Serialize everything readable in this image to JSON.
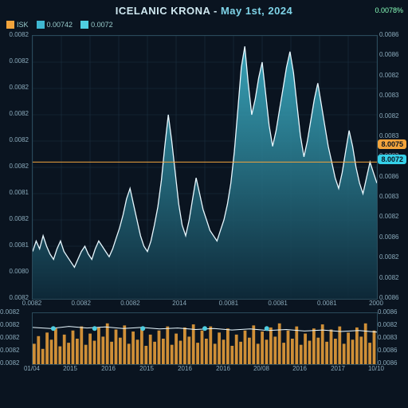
{
  "title_prefix": "ICELANIC KRONA",
  "title_sep": " - ",
  "title_date": "May 1st, 2024",
  "top_right": "0.0078%",
  "legend": [
    {
      "label": "ISK",
      "color": "#f2a43c"
    },
    {
      "label": "0.00742",
      "color": "#3fb7d1"
    },
    {
      "label": "0.0072",
      "color": "#4fcde0"
    }
  ],
  "chart": {
    "type": "area",
    "background": "#0a1420",
    "grid_color": "#1b3140",
    "line_color": "#e8f8ff",
    "line_width": 1.3,
    "area_top": "#3fbad1",
    "area_bottom": "#0e2a3a",
    "ref_line_color": "#f2a43c",
    "ref_line_y": 0.52,
    "xlim": [
      0,
      1
    ],
    "ylim": [
      0,
      1
    ],
    "y_ticks_left": [
      "0.0082",
      "0.0082",
      "0.0082",
      "0.0082",
      "0.0082",
      "0.0082",
      "0.0081",
      "0.0082",
      "0.0081",
      "0.0080",
      "0.0082"
    ],
    "y_ticks_right": [
      "0.0086",
      "0.0086",
      "0.0082",
      "0.0083",
      "0.0082",
      "0.0083",
      "0.0083",
      "0.0086",
      "0.0083",
      "0.0082",
      "0.0086",
      "0.0082",
      "0.0082",
      "0.0086"
    ],
    "x_ticks": [
      "0.0082",
      "0.0082",
      "0.0082",
      "2014",
      "0.0081",
      "0.0081",
      "0.0081",
      "2000"
    ],
    "badges": [
      {
        "text": "8.0072",
        "color": "#0a1420",
        "bg": "#35d0e8",
        "y": 0.52
      },
      {
        "text": "8.0075",
        "color": "#0a1420",
        "bg": "#f2a43c",
        "y": 0.58
      }
    ],
    "series": [
      0.18,
      0.22,
      0.19,
      0.24,
      0.2,
      0.17,
      0.15,
      0.19,
      0.22,
      0.18,
      0.16,
      0.14,
      0.12,
      0.15,
      0.18,
      0.2,
      0.17,
      0.15,
      0.19,
      0.22,
      0.2,
      0.18,
      0.16,
      0.19,
      0.23,
      0.27,
      0.32,
      0.38,
      0.42,
      0.36,
      0.3,
      0.24,
      0.2,
      0.18,
      0.22,
      0.28,
      0.35,
      0.45,
      0.58,
      0.7,
      0.6,
      0.48,
      0.36,
      0.28,
      0.24,
      0.3,
      0.38,
      0.46,
      0.4,
      0.34,
      0.3,
      0.26,
      0.24,
      0.22,
      0.26,
      0.3,
      0.36,
      0.44,
      0.56,
      0.72,
      0.88,
      0.96,
      0.82,
      0.7,
      0.76,
      0.84,
      0.9,
      0.78,
      0.66,
      0.58,
      0.64,
      0.72,
      0.8,
      0.88,
      0.94,
      0.86,
      0.74,
      0.62,
      0.54,
      0.6,
      0.68,
      0.76,
      0.82,
      0.74,
      0.66,
      0.58,
      0.52,
      0.46,
      0.42,
      0.48,
      0.56,
      0.64,
      0.58,
      0.5,
      0.44,
      0.4,
      0.46,
      0.52,
      0.48,
      0.44
    ]
  },
  "mini": {
    "type": "bar+line",
    "bar_color": "#f2a43c",
    "line_color": "#e8f8ff",
    "marker_color": "#4fcde0",
    "marker_r": 3,
    "y_left": [
      "0.0082",
      "0.0082",
      "0.0082",
      "0.0082",
      "0.0082"
    ],
    "y_right": [
      "0.0086",
      "0.0082",
      "0.0083",
      "0.0086",
      "0.0086"
    ],
    "x_ticks": [
      "01/04",
      "2015",
      "2016",
      "2015",
      "2016",
      "2016",
      "20/08",
      "2016",
      "2017",
      "10/10"
    ],
    "bars": [
      0.4,
      0.55,
      0.3,
      0.62,
      0.48,
      0.7,
      0.35,
      0.58,
      0.42,
      0.66,
      0.5,
      0.74,
      0.38,
      0.6,
      0.46,
      0.72,
      0.54,
      0.8,
      0.44,
      0.68,
      0.52,
      0.76,
      0.4,
      0.64,
      0.48,
      0.7,
      0.36,
      0.58,
      0.44,
      0.66,
      0.5,
      0.74,
      0.38,
      0.6,
      0.46,
      0.72,
      0.54,
      0.78,
      0.42,
      0.66,
      0.5,
      0.74,
      0.4,
      0.62,
      0.48,
      0.7,
      0.36,
      0.58,
      0.44,
      0.66,
      0.52,
      0.76,
      0.4,
      0.64,
      0.48,
      0.72,
      0.54,
      0.8,
      0.42,
      0.66,
      0.5,
      0.74,
      0.38,
      0.6,
      0.46,
      0.7,
      0.52,
      0.78,
      0.44,
      0.68,
      0.5,
      0.74,
      0.4,
      0.62,
      0.48,
      0.72,
      0.54,
      0.8,
      0.42,
      0.66
    ],
    "line": [
      0.72,
      0.7,
      0.74,
      0.71,
      0.73,
      0.7,
      0.72,
      0.69,
      0.71,
      0.68,
      0.7,
      0.67,
      0.69,
      0.66,
      0.68,
      0.65,
      0.67,
      0.64,
      0.66,
      0.63
    ],
    "markers_x": [
      0.06,
      0.18,
      0.32,
      0.5,
      0.68
    ]
  }
}
